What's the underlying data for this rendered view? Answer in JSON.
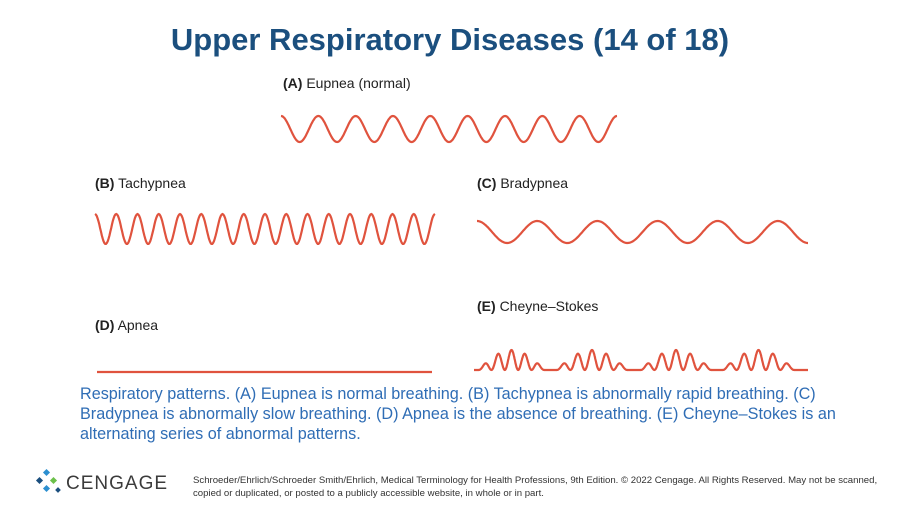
{
  "header": {
    "title": "Upper Respiratory Diseases (14 of 18)"
  },
  "panels": [
    {
      "letter": "(A)",
      "name": "Eupnea (normal)"
    },
    {
      "letter": "(B)",
      "name": "Tachypnea"
    },
    {
      "letter": "(C)",
      "name": "Bradypnea"
    },
    {
      "letter": "(D)",
      "name": "Apnea"
    },
    {
      "letter": "(E)",
      "name": "Cheyne–Stokes"
    }
  ],
  "caption": "Respiratory patterns. (A) Eupnea is normal breathing. (B) Tachypnea is abnormally rapid breathing. (C) Bradypnea is abnormally slow breathing. (D) Apnea is the absence of breathing. (E) Cheyne–Stokes is an alternating series of abnormal patterns.",
  "footer": {
    "logo": "CENGAGE",
    "copyright": "Schroeder/Ehrlich/Schroeder Smith/Ehrlich, Medical Terminology for Health Professions, 9th Edition. © 2022 Cengage. All Rights Reserved. May not be scanned, copied or duplicated, or posted to a publicly accessible website, in whole or in part."
  }
}
